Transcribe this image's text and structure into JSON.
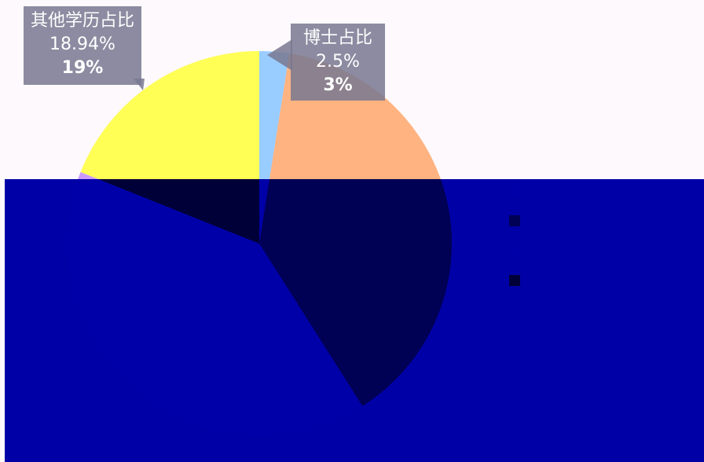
{
  "chart_data": {
    "type": "pie",
    "categories": [
      "博士占比2.5%",
      null,
      null,
      "其他学历占比18.94%"
    ],
    "values": [
      2.5,
      38.5,
      40.06,
      18.94
    ],
    "value_labels": [
      "3%",
      null,
      null,
      "19%"
    ],
    "colors": [
      "#99ccff",
      "#ffb380",
      "#cc99ff",
      "#ffff55"
    ]
  }
}
